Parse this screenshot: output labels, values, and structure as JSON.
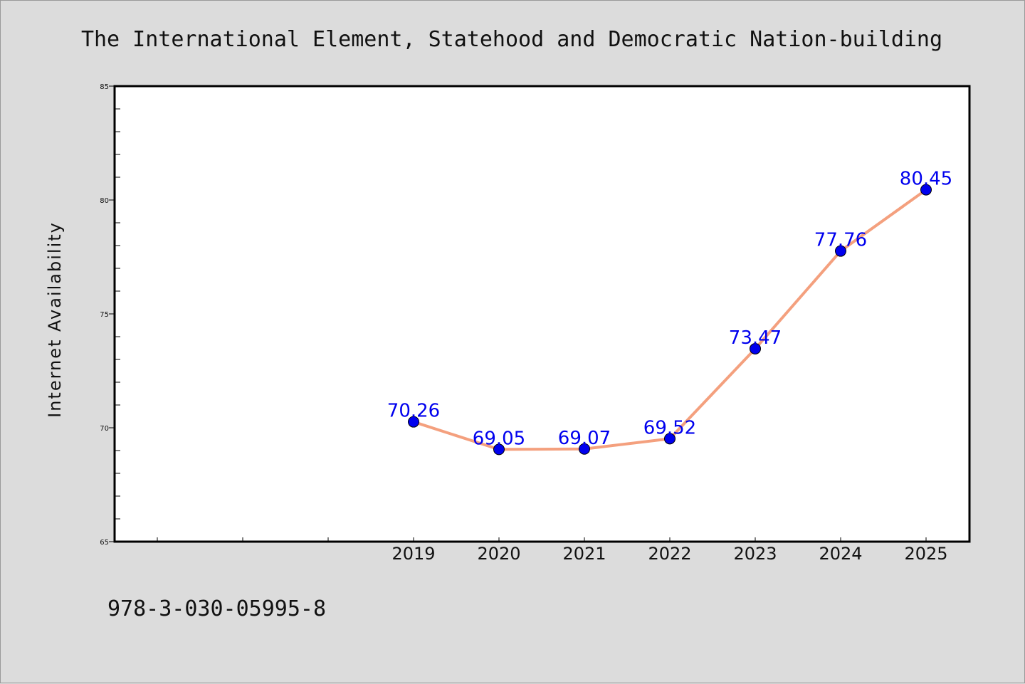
{
  "footer": {
    "isbn": "978-3-030-05995-8"
  },
  "colors": {
    "line": "#f4a07e",
    "marker": "#0000ee",
    "label": "#0000ee",
    "background": "#dcdcdc",
    "plot_bg": "#ffffff"
  },
  "chart_data": {
    "type": "line",
    "title": "The International Element, Statehood and Democratic Nation-building",
    "xlabel": "",
    "ylabel": "Internet Availability",
    "categories": [
      "2019",
      "2020",
      "2021",
      "2022",
      "2023",
      "2024",
      "2025"
    ],
    "series": [
      {
        "values": [
          70.26,
          69.05,
          69.07,
          69.52,
          73.47,
          77.76,
          80.45
        ]
      }
    ],
    "data_labels": [
      "70.26",
      "69.05",
      "69.07",
      "69.52",
      "73.47",
      "77.76",
      "80.45"
    ],
    "ylim": [
      65,
      85
    ],
    "yticks": [
      "65",
      "70",
      "75",
      "80",
      "85"
    ],
    "grid": false,
    "legend": "none"
  }
}
